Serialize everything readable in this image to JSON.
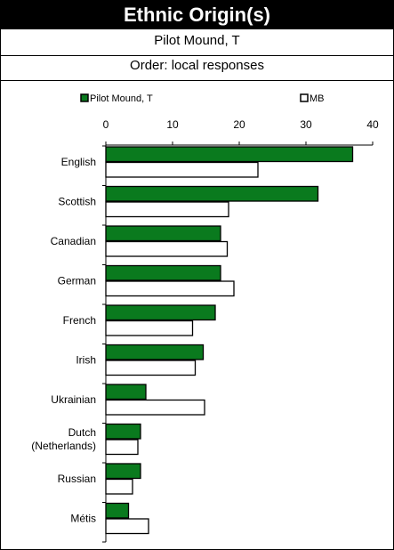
{
  "header": {
    "title": "Ethnic Origin(s)",
    "subtitle": "Pilot Mound, T",
    "order": "Order: local responses"
  },
  "chart_data": {
    "type": "bar",
    "orientation": "horizontal",
    "categories": [
      "English",
      "Scottish",
      "Canadian",
      "German",
      "French",
      "Irish",
      "Ukrainian",
      "Dutch\n(Netherlands)",
      "Russian",
      "Métis"
    ],
    "series": [
      {
        "name": "Pilot Mound, T",
        "color": "#0a7a1e",
        "values": [
          37.0,
          31.8,
          17.2,
          17.2,
          16.4,
          14.6,
          6.0,
          5.2,
          5.2,
          3.4
        ]
      },
      {
        "name": "MB",
        "color": "#ffffff",
        "values": [
          22.8,
          18.4,
          18.2,
          19.2,
          13.0,
          13.4,
          14.8,
          4.8,
          4.0,
          6.4
        ]
      }
    ],
    "xlim": [
      0,
      40
    ],
    "xticks": [
      0,
      10,
      20,
      30,
      40
    ],
    "legend": "top",
    "grid": false
  }
}
